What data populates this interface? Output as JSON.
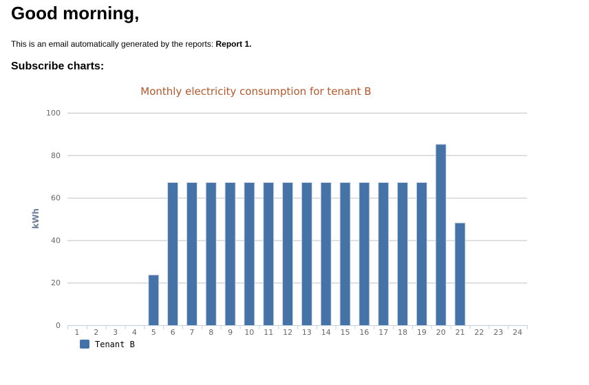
{
  "email": {
    "greeting": "Good morning,",
    "intro_text": "This is an email automatically generated by the reports: ",
    "report_name": "Report 1.",
    "section_title": "Subscribe charts:"
  },
  "colors": {
    "bar": "#4572a7",
    "title": "#b5572a",
    "axis_title": "#6b7f99",
    "grid": "#c0c0c0"
  },
  "chart_data": {
    "type": "bar",
    "title": "Monthly electricity consumption for tenant B",
    "xlabel": "",
    "ylabel": "kWh",
    "ylim": [
      0,
      100
    ],
    "yticks": [
      0,
      20,
      40,
      60,
      80,
      100
    ],
    "categories": [
      "1",
      "2",
      "3",
      "4",
      "5",
      "6",
      "7",
      "8",
      "9",
      "10",
      "11",
      "12",
      "13",
      "14",
      "15",
      "16",
      "17",
      "18",
      "19",
      "20",
      "21",
      "22",
      "23",
      "24"
    ],
    "series": [
      {
        "name": "Tenant B",
        "values": [
          0,
          0,
          0,
          0,
          23.5,
          67,
          67,
          67,
          67,
          67,
          67,
          67,
          67,
          67,
          67,
          67,
          67,
          67,
          67,
          85,
          48,
          0,
          0,
          0
        ]
      }
    ],
    "grid": true,
    "legend_position": "bottom-left"
  }
}
